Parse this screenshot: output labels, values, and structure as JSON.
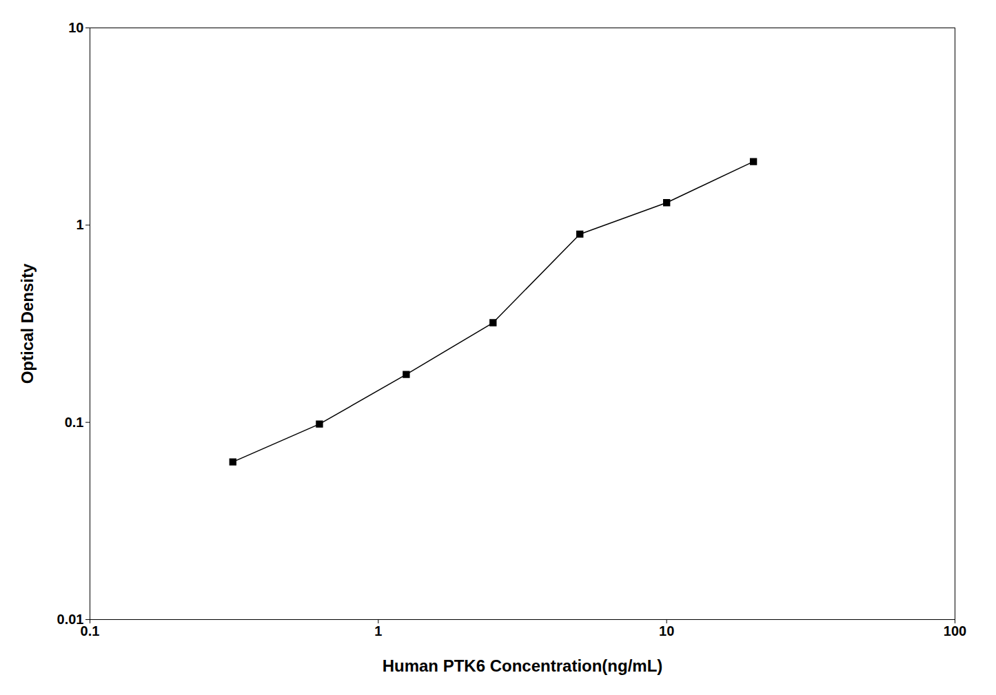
{
  "chart_data": {
    "type": "line",
    "x": [
      0.313,
      0.625,
      1.25,
      2.5,
      5.0,
      10.0,
      20.0
    ],
    "values": [
      0.063,
      0.098,
      0.175,
      0.32,
      0.9,
      1.3,
      2.1
    ],
    "xlabel": "Human PTK6 Concentration(ng/mL)",
    "ylabel": "Optical Density",
    "xlim": [
      0.1,
      100
    ],
    "ylim": [
      0.01,
      10
    ],
    "xticks": [
      0.1,
      1,
      10,
      100
    ],
    "yticks": [
      0.01,
      0.1,
      1,
      10
    ],
    "log": true,
    "color": "#000000",
    "marker": "square",
    "grid": false
  }
}
